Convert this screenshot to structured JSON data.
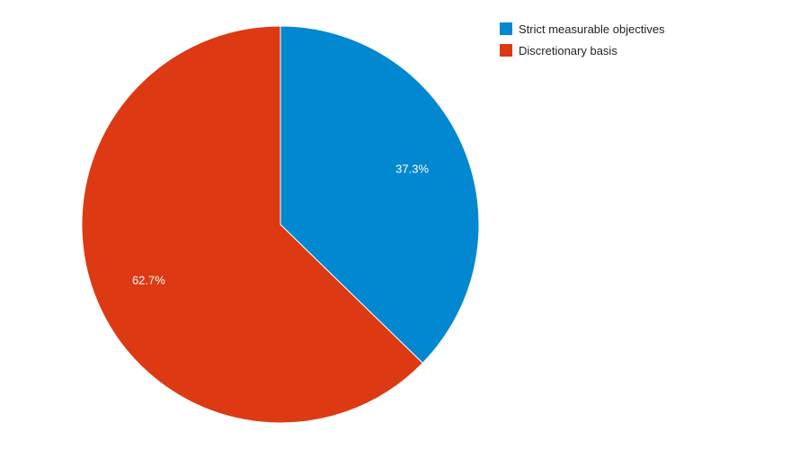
{
  "chart_data": {
    "type": "pie",
    "categories": [
      "Strict measurable objectives",
      "Discretionary basis"
    ],
    "values": [
      37.3,
      62.7
    ],
    "value_labels": [
      "37.3%",
      "62.7%"
    ],
    "colors": [
      "#0288d1",
      "#dd3912"
    ],
    "legend": "top-right",
    "start_angle_deg": 0,
    "direction": "clockwise"
  },
  "legend": {
    "items": [
      {
        "label": "Strict measurable objectives",
        "color": "#0288d1"
      },
      {
        "label": "Discretionary basis",
        "color": "#dd3912"
      }
    ]
  }
}
